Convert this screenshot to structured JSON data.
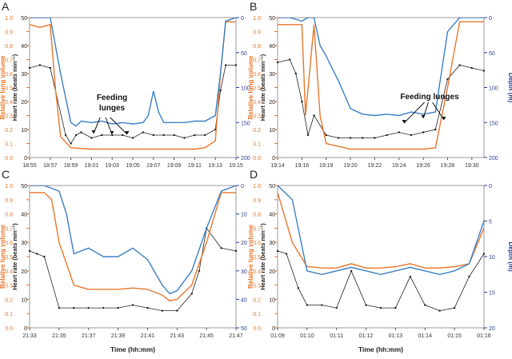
{
  "colors": {
    "lung": "#e8762c",
    "depth": "#3b7fc4",
    "heart": "#222222",
    "rlv_axis": "#e8762c",
    "depth_axis": "#2b3a8f",
    "frame": "#999999",
    "ticklabel": "#333333"
  },
  "axis_titles": {
    "rlv": "Relative lung volume",
    "hr": "Heart rate (beats min⁻¹)",
    "depth": "Depth (m)",
    "time": "Time (hh:mm)"
  },
  "chart_data": [
    {
      "panel": "A",
      "type": "line",
      "x_ticks": [
        "18:55",
        "18:57",
        "18:59",
        "19:01",
        "19:03",
        "19:05",
        "19:07",
        "19:09",
        "19:11",
        "19:13",
        "19:15"
      ],
      "xlim": [
        18.9167,
        19.25
      ],
      "hr_ylim": [
        0,
        50
      ],
      "hr_ticks": [
        0,
        10,
        20,
        30,
        40,
        50
      ],
      "rlv_ylim": [
        0,
        1
      ],
      "rlv_ticks": [
        "0.0",
        "0.1",
        "0.2",
        "0.3",
        "0.4",
        "0.5",
        "0.6",
        "0.7",
        "0.8",
        "0.9",
        "1.0"
      ],
      "depth_ylim": [
        200,
        0
      ],
      "depth_ticks": [
        0,
        50,
        100,
        150,
        200
      ],
      "annotation": "Feeding lunges",
      "annotation_lines": [
        "Feeding",
        "lunges"
      ],
      "depth_series": {
        "name": "Depth",
        "x": [
          "18:55",
          "18:56",
          "18:57",
          "18:58",
          "18:59",
          "18:59.5",
          "19:00",
          "19:01",
          "19:02",
          "19:03",
          "19:04",
          "19:05",
          "19:06",
          "19:06.5",
          "19:07",
          "19:07.5",
          "19:08",
          "19:09",
          "19:10",
          "19:11",
          "19:12",
          "19:13",
          "19:13.5",
          "19:14",
          "19:15"
        ],
        "y": [
          0,
          0,
          0,
          80,
          150,
          155,
          148,
          150,
          148,
          152,
          150,
          152,
          150,
          140,
          105,
          135,
          150,
          150,
          150,
          148,
          148,
          140,
          80,
          5,
          0
        ]
      },
      "lung_series": {
        "name": "Relative lung volume",
        "x": [
          "18:55",
          "18:56",
          "18:57",
          "18:57.5",
          "18:58",
          "18:59",
          "19:01",
          "19:03",
          "19:05",
          "19:07",
          "19:09",
          "19:11",
          "19:12",
          "19:13",
          "19:13.5",
          "19:14",
          "19:15"
        ],
        "y": [
          0.95,
          0.93,
          0.95,
          0.5,
          0.15,
          0.07,
          0.06,
          0.06,
          0.06,
          0.06,
          0.06,
          0.06,
          0.07,
          0.12,
          0.6,
          0.97,
          0.97
        ]
      },
      "hr_series": {
        "name": "Heart rate",
        "x": [
          "18:55",
          "18:56",
          "18:57",
          "18:58.5",
          "18:59",
          "18:59.5",
          "19:00",
          "19:01",
          "19:02",
          "19:03",
          "19:04",
          "19:05",
          "19:06",
          "19:07",
          "19:08",
          "19:09",
          "19:10",
          "19:11",
          "19:12",
          "19:13",
          "19:13.5",
          "19:14",
          "19:15"
        ],
        "y": [
          32,
          33,
          32,
          8,
          5,
          8,
          9,
          7,
          8,
          8,
          8,
          7,
          9,
          8,
          8,
          8,
          7,
          8,
          8,
          10,
          24,
          33,
          33
        ]
      }
    },
    {
      "panel": "B",
      "type": "line",
      "x_ticks": [
        "19:14",
        "19:16",
        "19:18",
        "19:20",
        "19:22",
        "19:24",
        "19:26",
        "19:28",
        "19:30"
      ],
      "xlim": [
        19.2333,
        19.5167
      ],
      "hr_ylim": [
        0,
        50
      ],
      "hr_ticks": [
        0,
        10,
        20,
        30,
        40,
        50
      ],
      "rlv_ylim": [
        0,
        1
      ],
      "rlv_ticks": [
        "0.0",
        "0.1",
        "0.2",
        "0.3",
        "0.4",
        "0.5",
        "0.6",
        "0.7",
        "0.8",
        "0.9",
        "1.0"
      ],
      "depth_ylim": [
        200,
        0
      ],
      "depth_ticks": [
        0,
        50,
        100,
        150,
        200
      ],
      "annotation": "Feeding lunges",
      "annotation_lines": [
        "Feeding lunges"
      ],
      "depth_series": {
        "name": "Depth",
        "x": [
          "19:14",
          "19:15",
          "19:16",
          "19:16.5",
          "19:17",
          "19:17.5",
          "19:18",
          "19:19",
          "19:20",
          "19:21",
          "19:22",
          "19:23",
          "19:24",
          "19:25",
          "19:26",
          "19:27",
          "19:28",
          "19:29",
          "19:30",
          "19:31"
        ],
        "y": [
          0,
          0,
          5,
          0,
          0,
          40,
          55,
          90,
          130,
          138,
          140,
          138,
          140,
          135,
          138,
          135,
          20,
          0,
          0,
          0
        ]
      },
      "lung_series": {
        "name": "Relative lung volume",
        "x": [
          "19:14",
          "19:15",
          "19:16",
          "19:16.3",
          "19:17",
          "19:17.5",
          "19:18",
          "19:20",
          "19:22",
          "19:24",
          "19:26",
          "19:27",
          "19:28",
          "19:29",
          "19:31"
        ],
        "y": [
          0.95,
          0.95,
          0.95,
          0.3,
          0.95,
          0.3,
          0.1,
          0.06,
          0.06,
          0.06,
          0.06,
          0.07,
          0.5,
          0.97,
          0.97
        ]
      },
      "hr_series": {
        "name": "Heart rate",
        "x": [
          "19:14",
          "19:15",
          "19:15.5",
          "19:16",
          "19:16.5",
          "19:17",
          "19:18",
          "19:19",
          "19:20",
          "19:21",
          "19:22",
          "19:23",
          "19:24",
          "19:25",
          "19:26",
          "19:27",
          "19:28",
          "19:29",
          "19:30",
          "19:31"
        ],
        "y": [
          34,
          35,
          30,
          20,
          8,
          15,
          8,
          7,
          7,
          7,
          7,
          8,
          9,
          8,
          9,
          10,
          28,
          33,
          32,
          31
        ]
      }
    },
    {
      "panel": "C",
      "type": "line",
      "x_ticks": [
        "21:33",
        "21:35",
        "21:37",
        "21:39",
        "21:41",
        "21:43",
        "21:45",
        "21:47"
      ],
      "xlim": [
        21.55,
        21.7833
      ],
      "hr_ylim": [
        0,
        50
      ],
      "hr_ticks": [
        0,
        10,
        20,
        30,
        40,
        50
      ],
      "rlv_ylim": [
        0,
        1
      ],
      "rlv_ticks": [
        "0.0",
        "0.1",
        "0.2",
        "0.3",
        "0.4",
        "0.5",
        "0.6",
        "0.7",
        "0.8",
        "0.9",
        "1.0"
      ],
      "depth_ylim": [
        50,
        0
      ],
      "depth_ticks": [
        0,
        10,
        20,
        30,
        40,
        50
      ],
      "depth_series": {
        "name": "Depth",
        "x": [
          "21:33",
          "21:34",
          "21:35",
          "21:35.5",
          "21:36",
          "21:37",
          "21:38",
          "21:39",
          "21:40",
          "21:41",
          "21:42",
          "21:42.5",
          "21:43",
          "21:44",
          "21:45",
          "21:46",
          "21:47"
        ],
        "y": [
          0,
          0,
          2,
          10,
          24,
          22,
          25,
          25,
          22,
          26,
          35,
          38,
          37,
          30,
          15,
          2,
          0
        ]
      },
      "lung_series": {
        "name": "Relative lung volume",
        "x": [
          "21:33",
          "21:34",
          "21:34.5",
          "21:35",
          "21:36",
          "21:37",
          "21:38",
          "21:39",
          "21:40",
          "21:41",
          "21:42",
          "21:42.5",
          "21:43",
          "21:44",
          "21:45",
          "21:46",
          "21:47"
        ],
        "y": [
          0.95,
          0.95,
          0.9,
          0.6,
          0.3,
          0.27,
          0.27,
          0.27,
          0.28,
          0.27,
          0.23,
          0.19,
          0.2,
          0.3,
          0.6,
          0.95,
          0.95
        ]
      },
      "hr_series": {
        "name": "Heart rate",
        "x": [
          "21:33",
          "21:33.5",
          "21:34",
          "21:35",
          "21:36",
          "21:37",
          "21:38",
          "21:39",
          "21:40",
          "21:41",
          "21:42",
          "21:43",
          "21:44",
          "21:44.5",
          "21:45",
          "21:46",
          "21:47"
        ],
        "y": [
          27,
          26,
          25,
          7,
          7,
          7,
          7,
          7,
          8,
          7,
          6,
          6,
          12,
          20,
          35,
          28,
          27
        ]
      }
    },
    {
      "panel": "D",
      "type": "line",
      "x_ticks": [
        "01:09",
        "01:10",
        "01:11",
        "01:12",
        "01:13",
        "01:14",
        "01:15",
        "01:16"
      ],
      "xlim": [
        1.15,
        1.2667
      ],
      "hr_ylim": [
        0,
        50
      ],
      "hr_ticks": [
        0,
        10,
        20,
        30,
        40,
        50
      ],
      "rlv_ylim": [
        0,
        1
      ],
      "rlv_ticks": [
        "0.0",
        "0.1",
        "0.2",
        "0.3",
        "0.4",
        "0.5",
        "0.6",
        "0.7",
        "0.8",
        "0.9",
        "1.0"
      ],
      "depth_ylim": [
        20,
        0
      ],
      "depth_ticks": [
        0,
        5,
        10,
        15,
        20
      ],
      "depth_series": {
        "name": "Depth",
        "x": [
          "01:09",
          "01:09.5",
          "01:10",
          "01:10.5",
          "01:11",
          "01:11.5",
          "01:12",
          "01:12.5",
          "01:13",
          "01:13.5",
          "01:14",
          "01:14.5",
          "01:15",
          "01:15.5",
          "01:16",
          "01:16.2"
        ],
        "y": [
          0,
          2,
          12,
          12.5,
          12,
          11.5,
          12,
          12.5,
          12,
          11.5,
          12,
          12.5,
          12,
          11,
          5,
          0
        ]
      },
      "lung_series": {
        "name": "Relative lung volume",
        "x": [
          "01:09",
          "01:09.5",
          "01:10",
          "01:10.5",
          "01:11",
          "01:11.5",
          "01:12",
          "01:12.5",
          "01:13",
          "01:13.5",
          "01:14",
          "01:14.5",
          "01:15",
          "01:15.5",
          "01:16",
          "01:16.2"
        ],
        "y": [
          0.95,
          0.6,
          0.43,
          0.42,
          0.42,
          0.45,
          0.42,
          0.42,
          0.43,
          0.45,
          0.42,
          0.42,
          0.43,
          0.45,
          0.7,
          0.95
        ]
      },
      "hr_series": {
        "name": "Heart rate",
        "x": [
          "01:09",
          "01:09.3",
          "01:09.7",
          "01:10",
          "01:10.5",
          "01:11",
          "01:11.5",
          "01:12",
          "01:12.5",
          "01:13",
          "01:13.5",
          "01:14",
          "01:14.5",
          "01:15",
          "01:15.5",
          "01:16"
        ],
        "y": [
          27,
          26,
          14,
          8,
          8,
          7,
          20,
          8,
          7,
          7,
          18,
          8,
          6,
          7,
          18,
          26
        ]
      }
    }
  ]
}
